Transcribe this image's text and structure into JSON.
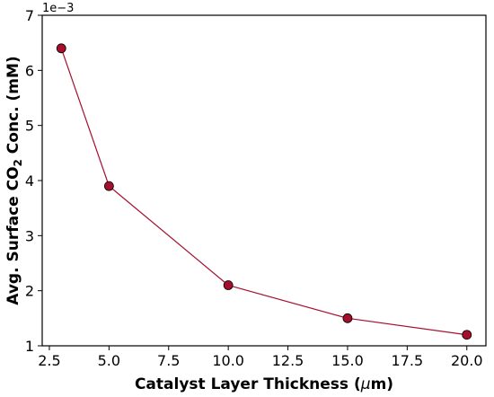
{
  "chart_data": {
    "type": "line",
    "xlabel_parts": [
      "Catalyst Layer Thickness (",
      "μ",
      "m)"
    ],
    "ylabel_parts": [
      "Avg. Surface CO",
      "2",
      " Conc. (mM)"
    ],
    "y_offset_text": "1e−3",
    "xlim": [
      2.2,
      20.8
    ],
    "ylim": [
      1,
      7
    ],
    "x_ticks": [
      2.5,
      5.0,
      7.5,
      10.0,
      12.5,
      15.0,
      17.5,
      20.0
    ],
    "x_tick_labels": [
      "2.5",
      "5.0",
      "7.5",
      "10.0",
      "12.5",
      "15.0",
      "17.5",
      "20.0"
    ],
    "y_ticks": [
      1,
      2,
      3,
      4,
      5,
      6,
      7
    ],
    "y_tick_labels": [
      "1",
      "2",
      "3",
      "4",
      "5",
      "6",
      "7"
    ],
    "grid": false,
    "series": [
      {
        "x": [
          3,
          5,
          10,
          15,
          20
        ],
        "y": [
          6.4,
          3.9,
          2.1,
          1.5,
          1.2
        ],
        "color": "#a50f2d",
        "marker": "circle"
      }
    ]
  }
}
